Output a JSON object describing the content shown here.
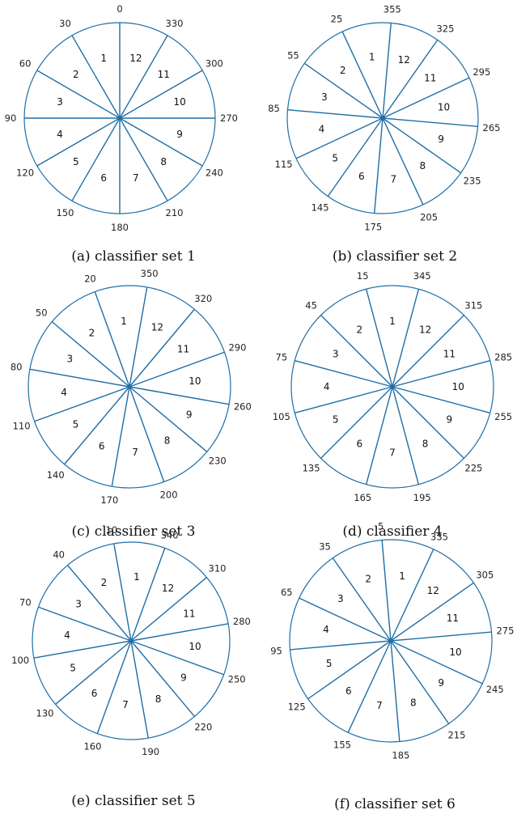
{
  "panels": [
    {
      "caption": "(a) classifier set 1",
      "offset": 0,
      "angle_labels": [
        "0",
        "30",
        "60",
        "90",
        "120",
        "150",
        "180",
        "210",
        "240",
        "270",
        "300",
        "330"
      ]
    },
    {
      "caption": "(b) classifier set 2",
      "offset": 355,
      "angle_labels": [
        "355",
        "25",
        "55",
        "85",
        "115",
        "145",
        "175",
        "205",
        "235",
        "265",
        "295",
        "325"
      ]
    },
    {
      "caption": "(c) classifier set 3",
      "offset": 350,
      "angle_labels": [
        "350",
        "20",
        "50",
        "80",
        "110",
        "140",
        "170",
        "200",
        "230",
        "260",
        "290",
        "320"
      ]
    },
    {
      "caption": "(d) classifier 4",
      "offset": 345,
      "angle_labels": [
        "345",
        "15",
        "45",
        "75",
        "105",
        "135",
        "165",
        "195",
        "225",
        "255",
        "285",
        "315"
      ]
    },
    {
      "caption": "(e) classifier set 5",
      "offset": 340,
      "angle_labels": [
        "340",
        "10",
        "40",
        "70",
        "100",
        "130",
        "160",
        "190",
        "220",
        "250",
        "280",
        "310"
      ]
    },
    {
      "caption": "(f) classifier set 6",
      "offset": 335,
      "angle_labels": [
        "335",
        "5",
        "35",
        "65",
        "95",
        "125",
        "155",
        "185",
        "215",
        "245",
        "275",
        "305"
      ]
    }
  ],
  "sector_labels": [
    "1",
    "2",
    "3",
    "4",
    "5",
    "6",
    "7",
    "8",
    "9",
    "10",
    "11",
    "12"
  ],
  "colors": {
    "line": "#1f6ea6",
    "text": "#111111"
  }
}
